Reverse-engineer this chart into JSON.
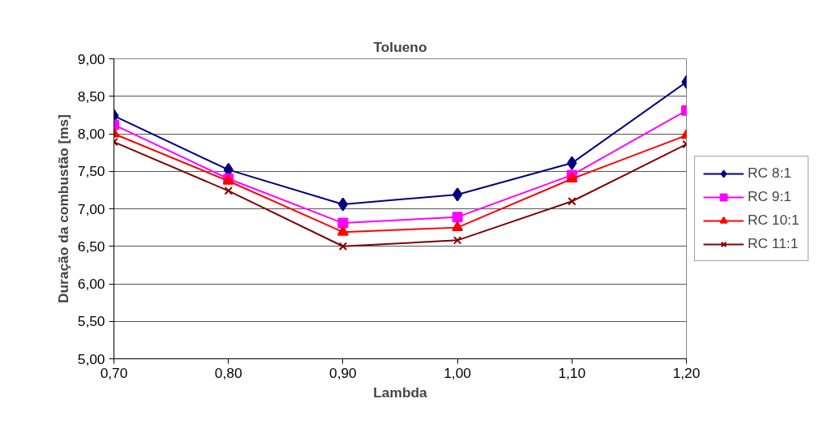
{
  "chart_data": {
    "type": "line",
    "title": "Tolueno",
    "xlabel": "Lambda",
    "ylabel": "Duração da combustão [ms]",
    "x": [
      0.7,
      0.8,
      0.9,
      1.0,
      1.1,
      1.2
    ],
    "xlim": [
      0.7,
      1.2
    ],
    "xticks": [
      {
        "value": 0.7,
        "label": "0,70"
      },
      {
        "value": 0.8,
        "label": "0,80"
      },
      {
        "value": 0.9,
        "label": "0,90"
      },
      {
        "value": 1.0,
        "label": "1,00"
      },
      {
        "value": 1.1,
        "label": "1,10"
      },
      {
        "value": 1.2,
        "label": "1,20"
      }
    ],
    "ylim": [
      5,
      9
    ],
    "yticks": [
      {
        "value": 5,
        "label": "5,00"
      },
      {
        "value": 5.5,
        "label": "5,50"
      },
      {
        "value": 6,
        "label": "6,00"
      },
      {
        "value": 6.5,
        "label": "6,50"
      },
      {
        "value": 7,
        "label": "7,00"
      },
      {
        "value": 7.5,
        "label": "7,50"
      },
      {
        "value": 8,
        "label": "8,00"
      },
      {
        "value": 8.5,
        "label": "8,50"
      },
      {
        "value": 9,
        "label": "9,00"
      }
    ],
    "grid": "y",
    "legend": "right",
    "line_style": "solid",
    "series": [
      {
        "name": "RC 8:1",
        "color": "#000080",
        "marker": "diamond",
        "values": [
          8.24,
          7.52,
          7.06,
          7.19,
          7.61,
          8.69
        ]
      },
      {
        "name": "RC 9:1",
        "color": "#ff00ff",
        "marker": "square",
        "values": [
          8.12,
          7.4,
          6.81,
          6.89,
          7.45,
          8.31
        ]
      },
      {
        "name": "RC 10:1",
        "color": "#ff0000",
        "marker": "triangle",
        "values": [
          8.0,
          7.37,
          6.69,
          6.75,
          7.4,
          7.98
        ]
      },
      {
        "name": "RC 11:1",
        "color": "#800000",
        "marker": "cross",
        "values": [
          7.89,
          7.24,
          6.5,
          6.58,
          7.1,
          7.86
        ]
      }
    ]
  }
}
